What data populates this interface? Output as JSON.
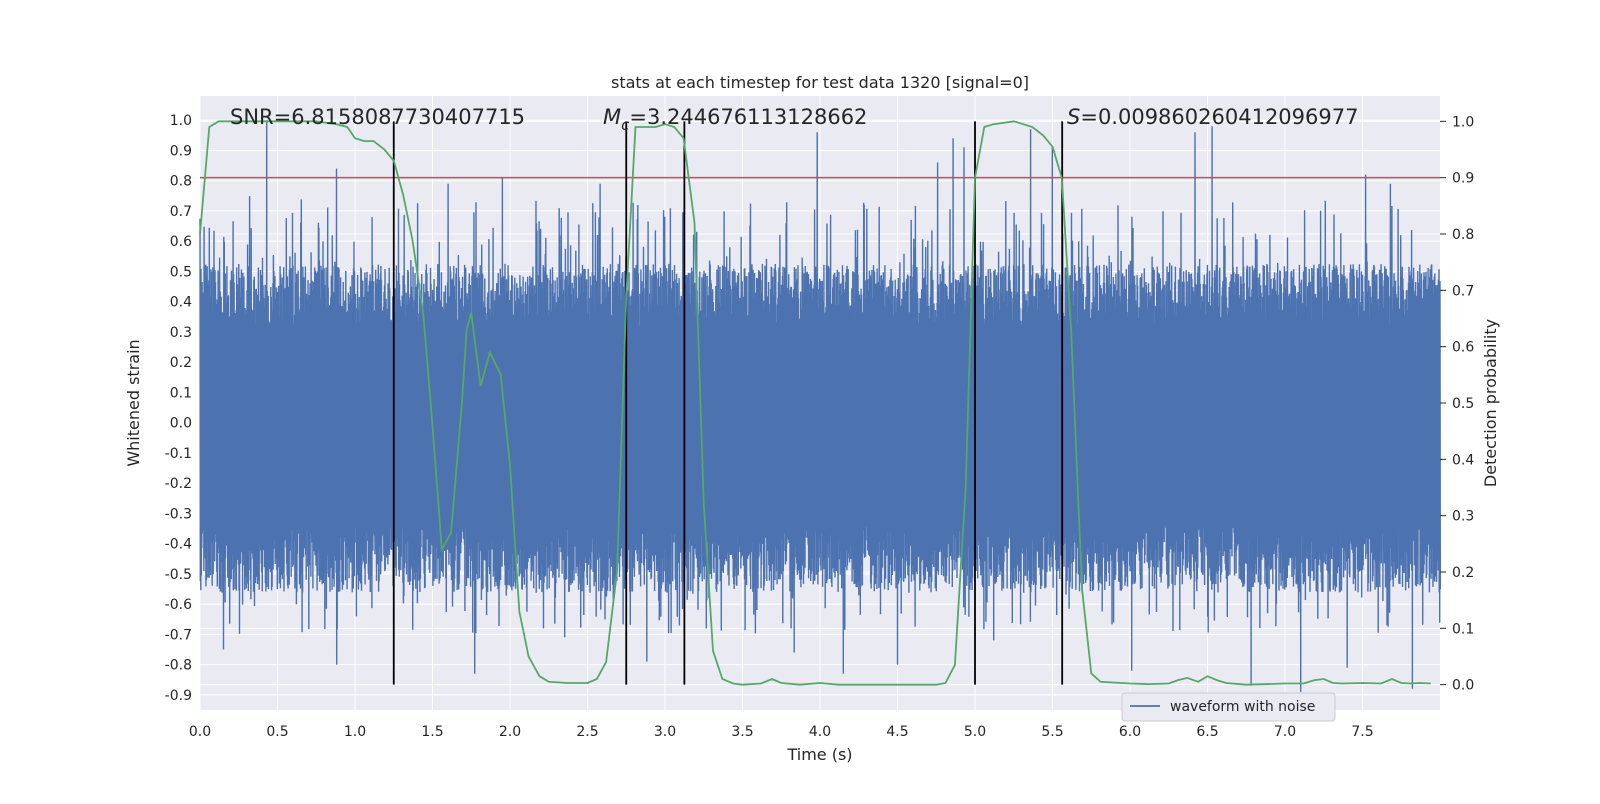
{
  "chart_data": {
    "type": "line",
    "title": "stats at each timestep for test data 1320 [signal=0]",
    "xlabel": "Time (s)",
    "ylabel": "Whitened strain",
    "y2label": "Detection probability",
    "xlim": [
      0.0,
      8.0
    ],
    "ylim": [
      -0.95,
      1.08
    ],
    "y2lim": [
      -0.045,
      1.045
    ],
    "xticks": [
      "0.0",
      "0.5",
      "1.0",
      "1.5",
      "2.0",
      "2.5",
      "3.0",
      "3.5",
      "4.0",
      "4.5",
      "5.0",
      "5.5",
      "6.0",
      "6.5",
      "7.0",
      "7.5"
    ],
    "yticks": [
      "1.0",
      "0.9",
      "0.8",
      "0.7",
      "0.6",
      "0.5",
      "0.4",
      "0.3",
      "0.2",
      "0.1",
      "0.0",
      "-0.1",
      "-0.2",
      "-0.3",
      "-0.4",
      "-0.5",
      "-0.6",
      "-0.7",
      "-0.8",
      "-0.9"
    ],
    "y2ticks": [
      "1.0",
      "0.9",
      "0.8",
      "0.7",
      "0.6",
      "0.5",
      "0.4",
      "0.3",
      "0.2",
      "0.1",
      "0.0"
    ],
    "grid": true,
    "legend": {
      "position": "bottom-right",
      "entries": [
        "waveform with noise"
      ]
    },
    "annotations": {
      "snr": "SNR=6.8158087730407715",
      "mc_symbol": "M",
      "mc_sub": "c",
      "mc_value": "=3.244676113128662",
      "s_symbol": "S",
      "s_value": "=0.009860260412096977"
    },
    "threshold": {
      "axis": "y2",
      "value": 0.9
    },
    "vertical_lines": [
      1.25,
      2.75,
      3.125,
      5.0,
      5.5625
    ],
    "waveform": {
      "name": "waveform with noise",
      "color": "#4c72b0",
      "sample_rate_hz": 2048,
      "duration_s": 8.0,
      "band_upper": 0.42,
      "band_lower": -0.45,
      "spikes": [
        [
          0.43,
          1.0
        ],
        [
          0.88,
          0.84
        ],
        [
          1.6,
          0.79
        ],
        [
          1.95,
          0.81
        ],
        [
          2.58,
          0.79
        ],
        [
          3.98,
          0.96
        ],
        [
          4.76,
          0.86
        ],
        [
          4.86,
          0.94
        ],
        [
          4.93,
          0.91
        ],
        [
          5.36,
          0.97
        ],
        [
          5.5,
          0.91
        ],
        [
          6.42,
          0.96
        ],
        [
          6.53,
          0.98
        ],
        [
          7.52,
          0.82
        ],
        [
          7.68,
          0.79
        ],
        [
          0.15,
          -0.75
        ],
        [
          0.88,
          -0.8
        ],
        [
          1.77,
          -0.83
        ],
        [
          2.35,
          -0.71
        ],
        [
          2.88,
          -0.79
        ],
        [
          3.83,
          -0.76
        ],
        [
          4.15,
          -0.83
        ],
        [
          4.5,
          -0.8
        ],
        [
          6.01,
          -0.82
        ],
        [
          6.78,
          -0.87
        ],
        [
          7.1,
          -0.89
        ],
        [
          7.4,
          -0.81
        ],
        [
          7.82,
          -0.88
        ],
        [
          5.12,
          -0.72
        ]
      ]
    },
    "probability": {
      "name": "detection probability",
      "color": "#55a868",
      "x": [
        0.0,
        0.06,
        0.12,
        0.25,
        0.5,
        0.75,
        0.88,
        0.95,
        1.0,
        1.06,
        1.12,
        1.19,
        1.25,
        1.31,
        1.37,
        1.44,
        1.5,
        1.56,
        1.62,
        1.69,
        1.72,
        1.75,
        1.81,
        1.87,
        1.94,
        2.0,
        2.06,
        2.12,
        2.19,
        2.25,
        2.37,
        2.5,
        2.56,
        2.62,
        2.69,
        2.75,
        2.81,
        2.87,
        2.94,
        3.0,
        3.06,
        3.12,
        3.19,
        3.25,
        3.31,
        3.37,
        3.44,
        3.5,
        3.62,
        3.69,
        3.75,
        3.87,
        4.0,
        4.12,
        4.25,
        4.5,
        4.75,
        4.81,
        4.87,
        4.94,
        5.0,
        5.06,
        5.12,
        5.25,
        5.37,
        5.44,
        5.5,
        5.56,
        5.62,
        5.69,
        5.75,
        5.81,
        6.0,
        6.12,
        6.25,
        6.31,
        6.37,
        6.44,
        6.5,
        6.56,
        6.62,
        6.75,
        7.0,
        7.12,
        7.19,
        7.25,
        7.31,
        7.37,
        7.5,
        7.62,
        7.69,
        7.75,
        7.81,
        7.87,
        7.94
      ],
      "values": [
        0.8,
        0.99,
        1.0,
        1.0,
        1.0,
        1.0,
        0.995,
        0.99,
        0.97,
        0.965,
        0.965,
        0.95,
        0.93,
        0.87,
        0.79,
        0.66,
        0.46,
        0.24,
        0.27,
        0.5,
        0.63,
        0.66,
        0.53,
        0.59,
        0.55,
        0.39,
        0.13,
        0.05,
        0.015,
        0.005,
        0.003,
        0.003,
        0.01,
        0.04,
        0.2,
        0.69,
        0.99,
        0.99,
        0.99,
        0.995,
        0.99,
        0.97,
        0.82,
        0.32,
        0.06,
        0.01,
        0.002,
        0.0,
        0.002,
        0.01,
        0.003,
        0.0,
        0.003,
        0.0,
        0.0,
        0.0,
        0.0,
        0.003,
        0.035,
        0.35,
        0.9,
        0.99,
        0.995,
        1.0,
        0.99,
        0.975,
        0.955,
        0.9,
        0.63,
        0.17,
        0.02,
        0.005,
        0.002,
        0.001,
        0.002,
        0.008,
        0.012,
        0.005,
        0.015,
        0.008,
        0.003,
        0.0,
        0.002,
        0.002,
        0.008,
        0.01,
        0.003,
        0.002,
        0.003,
        0.002,
        0.01,
        0.003,
        0.002,
        0.003,
        0.002
      ]
    },
    "colors": {
      "axes_bg": "#eaeaf2",
      "grid": "#ffffff",
      "threshold": "#c44e52",
      "vlines": "#000000"
    }
  }
}
